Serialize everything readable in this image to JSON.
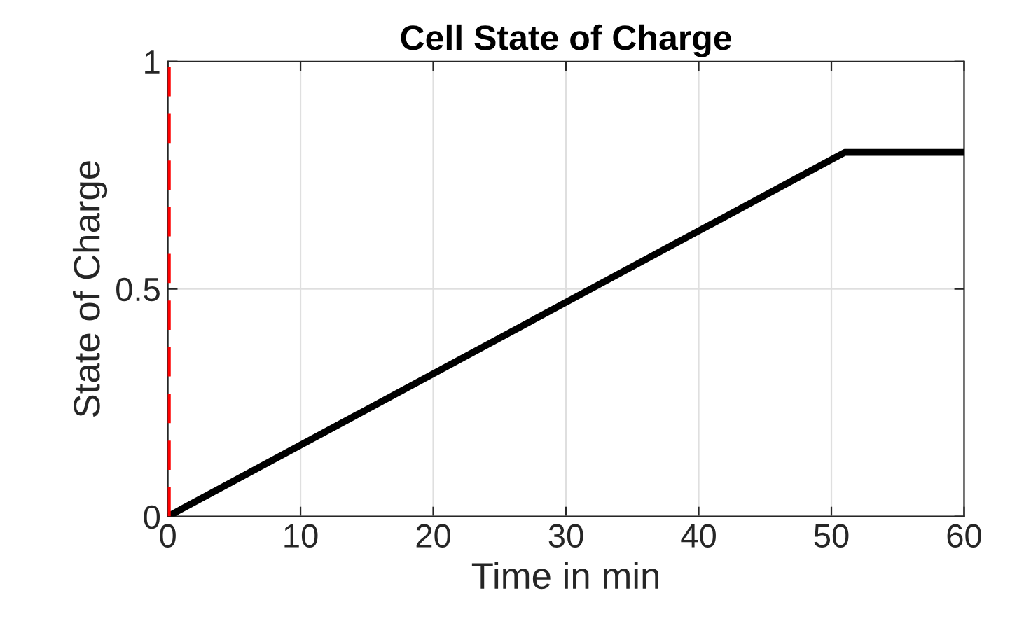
{
  "chart_data": {
    "type": "line",
    "title": "Cell State of Charge",
    "xlabel": "Time in min",
    "ylabel": "State of Charge",
    "x": [
      0,
      51,
      60
    ],
    "series": [
      {
        "color": "#000000",
        "values": [
          0,
          0.8,
          0.8
        ]
      }
    ],
    "xlim": [
      0,
      60
    ],
    "xticks": [
      0,
      10,
      20,
      30,
      40,
      50,
      60
    ],
    "ylim": [
      0,
      1
    ],
    "yticks": [
      0,
      0.5,
      1
    ],
    "ref_lines": [
      {
        "axis": "x",
        "value": 0,
        "color": "#ff0000",
        "line_style": "dashed"
      }
    ],
    "grid": true,
    "line_style": "solid"
  }
}
